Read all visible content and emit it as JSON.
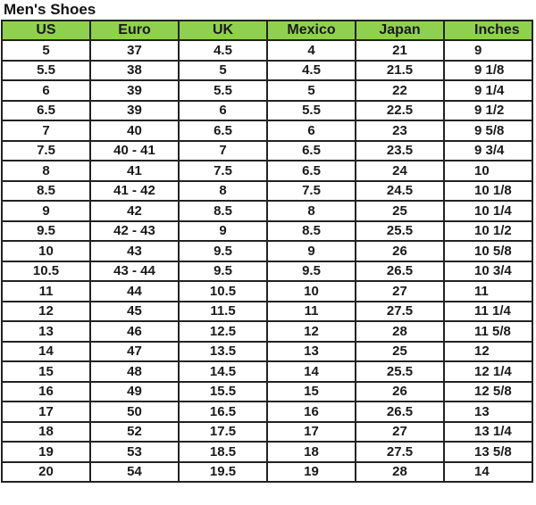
{
  "title": "Men's Shoes",
  "colors": {
    "header_bg": "#8fd14f",
    "border": "#222222"
  },
  "columns": [
    "US",
    "Euro",
    "UK",
    "Mexico",
    "Japan",
    "Inches"
  ],
  "rows": [
    [
      "5",
      "37",
      "4.5",
      "4",
      "21",
      "9"
    ],
    [
      "5.5",
      "38",
      "5",
      "4.5",
      "21.5",
      "9 1/8"
    ],
    [
      "6",
      "39",
      "5.5",
      "5",
      "22",
      "9 1/4"
    ],
    [
      "6.5",
      "39",
      "6",
      "5.5",
      "22.5",
      "9 1/2"
    ],
    [
      "7",
      "40",
      "6.5",
      "6",
      "23",
      "9 5/8"
    ],
    [
      "7.5",
      "40 - 41",
      "7",
      "6.5",
      "23.5",
      "9 3/4"
    ],
    [
      "8",
      "41",
      "7.5",
      "6.5",
      "24",
      "10"
    ],
    [
      "8.5",
      "41 - 42",
      "8",
      "7.5",
      "24.5",
      "10 1/8"
    ],
    [
      "9",
      "42",
      "8.5",
      "8",
      "25",
      "10 1/4"
    ],
    [
      "9.5",
      "42 - 43",
      "9",
      "8.5",
      "25.5",
      "10 1/2"
    ],
    [
      "10",
      "43",
      "9.5",
      "9",
      "26",
      "10 5/8"
    ],
    [
      "10.5",
      "43 - 44",
      "9.5",
      "9.5",
      "26.5",
      "10 3/4"
    ],
    [
      "11",
      "44",
      "10.5",
      "10",
      "27",
      "11"
    ],
    [
      "12",
      "45",
      "11.5",
      "11",
      "27.5",
      "11 1/4"
    ],
    [
      "13",
      "46",
      "12.5",
      "12",
      "28",
      "11 5/8"
    ],
    [
      "14",
      "47",
      "13.5",
      "13",
      "25",
      "12"
    ],
    [
      "15",
      "48",
      "14.5",
      "14",
      "25.5",
      "12 1/4"
    ],
    [
      "16",
      "49",
      "15.5",
      "15",
      "26",
      "12 5/8"
    ],
    [
      "17",
      "50",
      "16.5",
      "16",
      "26.5",
      "13"
    ],
    [
      "18",
      "52",
      "17.5",
      "17",
      "27",
      "13 1/4"
    ],
    [
      "19",
      "53",
      "18.5",
      "18",
      "27.5",
      "13 5/8"
    ],
    [
      "20",
      "54",
      "19.5",
      "19",
      "28",
      "14"
    ]
  ]
}
